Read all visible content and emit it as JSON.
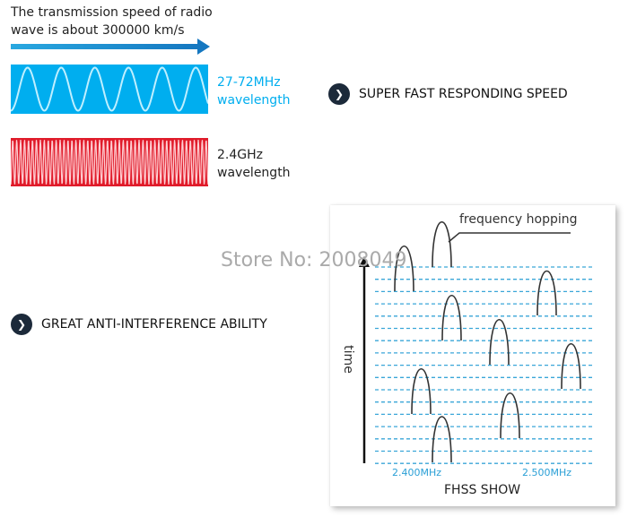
{
  "intro": {
    "line1": "The transmission speed of radio",
    "line2": "wave is about 300000 km/s"
  },
  "low_band": {
    "freq": "27-72MHz",
    "label": "wavelength",
    "color": "#00aeef"
  },
  "high_band": {
    "freq": "2.4GHz",
    "label": "wavelength",
    "color": "#e01b2a"
  },
  "features": [
    "SUPER FAST RESPONDING SPEED",
    "GREAT ANTI-INTERFERENCE ABILITY"
  ],
  "watermark": "Store No: 2008049",
  "fhss": {
    "callout": "frequency hopping",
    "axis_label": "time",
    "freq_low": "2.400MHz",
    "freq_high": "2.500MHz",
    "title": "FHSS SHOW"
  }
}
